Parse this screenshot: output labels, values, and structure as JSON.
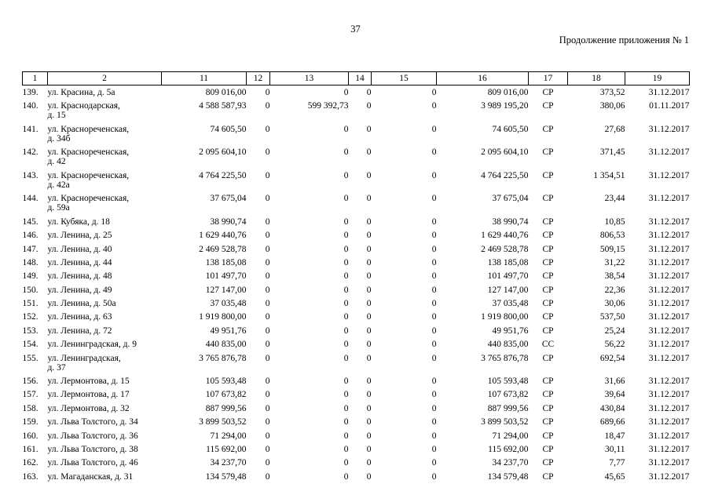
{
  "page": {
    "number": "37",
    "header_right": "Продолжение приложения № 1"
  },
  "table": {
    "column_headers": [
      "1",
      "2",
      "11",
      "12",
      "13",
      "14",
      "15",
      "16",
      "17",
      "18",
      "19"
    ],
    "rows": [
      [
        "139.",
        "ул. Красина, д. 5а",
        "809 016,00",
        "0",
        "0",
        "0",
        "0",
        "809 016,00",
        "СР",
        "373,52",
        "31.12.2017"
      ],
      [
        "140.",
        "ул. Краснодарская,\nд. 15",
        "4 588 587,93",
        "0",
        "599 392,73",
        "0",
        "0",
        "3 989 195,20",
        "СР",
        "380,06",
        "01.11.2017"
      ],
      [
        "141.",
        "ул. Краснореченская,\nд. 34б",
        "74 605,50",
        "0",
        "0",
        "0",
        "0",
        "74 605,50",
        "СР",
        "27,68",
        "31.12.2017"
      ],
      [
        "142.",
        "ул. Краснореченская,\nд. 42",
        "2 095 604,10",
        "0",
        "0",
        "0",
        "0",
        "2 095 604,10",
        "СР",
        "371,45",
        "31.12.2017"
      ],
      [
        "143.",
        "ул. Краснореченская,\nд. 42а",
        "4 764 225,50",
        "0",
        "0",
        "0",
        "0",
        "4 764 225,50",
        "СР",
        "1 354,51",
        "31.12.2017"
      ],
      [
        "144.",
        "ул. Краснореченская,\nд. 59а",
        "37 675,04",
        "0",
        "0",
        "0",
        "0",
        "37 675,04",
        "СР",
        "23,44",
        "31.12.2017"
      ],
      [
        "145.",
        "ул. Кубяка, д. 18",
        "38 990,74",
        "0",
        "0",
        "0",
        "0",
        "38 990,74",
        "СР",
        "10,85",
        "31.12.2017"
      ],
      [
        "146.",
        "ул. Ленина, д. 25",
        "1 629 440,76",
        "0",
        "0",
        "0",
        "0",
        "1 629 440,76",
        "СР",
        "806,53",
        "31.12.2017"
      ],
      [
        "147.",
        "ул. Ленина, д. 40",
        "2 469 528,78",
        "0",
        "0",
        "0",
        "0",
        "2 469 528,78",
        "СР",
        "509,15",
        "31.12.2017"
      ],
      [
        "148.",
        "ул. Ленина, д. 44",
        "138 185,08",
        "0",
        "0",
        "0",
        "0",
        "138 185,08",
        "СР",
        "31,22",
        "31.12.2017"
      ],
      [
        "149.",
        "ул. Ленина, д. 48",
        "101 497,70",
        "0",
        "0",
        "0",
        "0",
        "101 497,70",
        "СР",
        "38,54",
        "31.12.2017"
      ],
      [
        "150.",
        "ул. Ленина, д. 49",
        "127 147,00",
        "0",
        "0",
        "0",
        "0",
        "127 147,00",
        "СР",
        "22,36",
        "31.12.2017"
      ],
      [
        "151.",
        "ул. Ленина, д. 50а",
        "37 035,48",
        "0",
        "0",
        "0",
        "0",
        "37 035,48",
        "СР",
        "30,06",
        "31.12.2017"
      ],
      [
        "152.",
        "ул. Ленина, д. 63",
        "1 919 800,00",
        "0",
        "0",
        "0",
        "0",
        "1 919 800,00",
        "СР",
        "537,50",
        "31.12.2017"
      ],
      [
        "153.",
        "ул. Ленина, д. 72",
        "49 951,76",
        "0",
        "0",
        "0",
        "0",
        "49 951,76",
        "СР",
        "25,24",
        "31.12.2017"
      ],
      [
        "154.",
        "ул. Ленинградская, д. 9",
        "440 835,00",
        "0",
        "0",
        "0",
        "0",
        "440 835,00",
        "СС",
        "56,22",
        "31.12.2017"
      ],
      [
        "155.",
        "ул. Ленинградская,\nд. 37",
        "3 765 876,78",
        "0",
        "0",
        "0",
        "0",
        "3 765 876,78",
        "СР",
        "692,54",
        "31.12.2017"
      ],
      [
        "156.",
        "ул. Лермонтова, д. 15",
        "105 593,48",
        "0",
        "0",
        "0",
        "0",
        "105 593,48",
        "СР",
        "31,66",
        "31.12.2017"
      ],
      [
        "157.",
        "ул. Лермонтова, д. 17",
        "107 673,82",
        "0",
        "0",
        "0",
        "0",
        "107 673,82",
        "СР",
        "39,64",
        "31.12.2017"
      ],
      [
        "158.",
        "ул. Лермонтова, д. 32",
        "887 999,56",
        "0",
        "0",
        "0",
        "0",
        "887 999,56",
        "СР",
        "430,84",
        "31.12.2017"
      ],
      [
        "159.",
        "ул. Льва Толстого, д. 34",
        "3 899 503,52",
        "0",
        "0",
        "0",
        "0",
        "3 899 503,52",
        "СР",
        "689,66",
        "31.12.2017"
      ],
      [
        "160.",
        "ул. Льва Толстого, д. 36",
        "71 294,00",
        "0",
        "0",
        "0",
        "0",
        "71 294,00",
        "СР",
        "18,47",
        "31.12.2017"
      ],
      [
        "161.",
        "ул. Льва Толстого, д. 38",
        "115 692,00",
        "0",
        "0",
        "0",
        "0",
        "115 692,00",
        "СР",
        "30,11",
        "31.12.2017"
      ],
      [
        "162.",
        "ул. Льва Толстого, д. 46",
        "34 237,70",
        "0",
        "0",
        "0",
        "0",
        "34 237,70",
        "СР",
        "7,77",
        "31.12.2017"
      ],
      [
        "163.",
        "ул. Магаданская, д. 31",
        "134 579,48",
        "0",
        "0",
        "0",
        "0",
        "134 579,48",
        "СР",
        "45,65",
        "31.12.2017"
      ]
    ]
  }
}
